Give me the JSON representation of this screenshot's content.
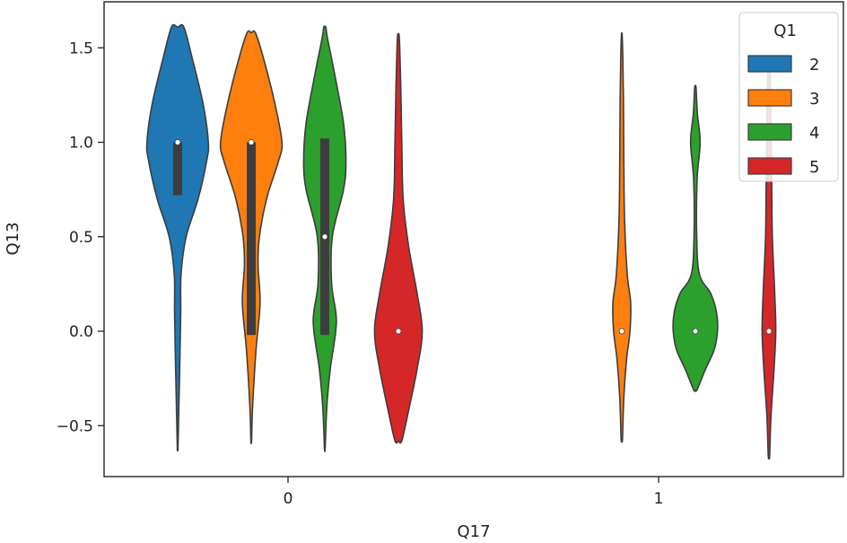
{
  "chart_data": {
    "type": "violin",
    "xlabel": "Q17",
    "ylabel": "Q13",
    "categories": [
      "0",
      "1"
    ],
    "ylim": [
      -0.72,
      1.75
    ],
    "yticks": [
      -0.5,
      0.0,
      0.5,
      1.0,
      1.5
    ],
    "ytick_labels": [
      "−0.5",
      "0.0",
      "0.5",
      "1.0",
      "1.5"
    ],
    "grid": false,
    "legend": {
      "title": "Q1",
      "position": "top-right"
    },
    "series": [
      {
        "name": "2",
        "color": "#1f77b4",
        "violins": [
          {
            "category": "0",
            "median": 1.0,
            "q1": 0.72,
            "q3": 1.0,
            "min": -0.62,
            "max": 1.61,
            "profile": [
              [
                -0.62,
                0.01
              ],
              [
                -0.45,
                0.03
              ],
              [
                -0.2,
                0.06
              ],
              [
                0.1,
                0.09
              ],
              [
                0.3,
                0.1
              ],
              [
                0.5,
                0.25
              ],
              [
                0.7,
                0.6
              ],
              [
                0.9,
                0.85
              ],
              [
                1.0,
                0.9
              ],
              [
                1.2,
                0.75
              ],
              [
                1.45,
                0.42
              ],
              [
                1.61,
                0.18
              ]
            ]
          }
        ]
      },
      {
        "name": "3",
        "color": "#ff7f0e",
        "violins": [
          {
            "category": "0",
            "median": 1.0,
            "q1": -0.02,
            "q3": 1.0,
            "min": -0.58,
            "max": 1.58,
            "profile": [
              [
                -0.58,
                0.01
              ],
              [
                -0.4,
                0.04
              ],
              [
                -0.1,
                0.14
              ],
              [
                0.15,
                0.26
              ],
              [
                0.35,
                0.2
              ],
              [
                0.5,
                0.24
              ],
              [
                0.7,
                0.45
              ],
              [
                0.9,
                0.8
              ],
              [
                1.0,
                0.9
              ],
              [
                1.2,
                0.7
              ],
              [
                1.45,
                0.35
              ],
              [
                1.58,
                0.12
              ]
            ]
          },
          {
            "category": "1",
            "median": 0.0,
            "q1": 0.0,
            "q3": 0.0,
            "min": -0.57,
            "max": 1.57,
            "profile": [
              [
                -0.57,
                0.02
              ],
              [
                -0.35,
                0.06
              ],
              [
                -0.15,
                0.14
              ],
              [
                0.0,
                0.24
              ],
              [
                0.15,
                0.26
              ],
              [
                0.3,
                0.16
              ],
              [
                0.6,
                0.08
              ],
              [
                0.9,
                0.06
              ],
              [
                1.2,
                0.05
              ],
              [
                1.45,
                0.03
              ],
              [
                1.57,
                0.01
              ]
            ]
          }
        ]
      },
      {
        "name": "4",
        "color": "#2ca02c",
        "violins": [
          {
            "category": "0",
            "median": 0.5,
            "q1": -0.02,
            "q3": 1.02,
            "min": -0.62,
            "max": 1.61,
            "profile": [
              [
                -0.62,
                0.01
              ],
              [
                -0.4,
                0.06
              ],
              [
                -0.2,
                0.16
              ],
              [
                0.05,
                0.34
              ],
              [
                0.25,
                0.2
              ],
              [
                0.5,
                0.22
              ],
              [
                0.75,
                0.55
              ],
              [
                0.9,
                0.62
              ],
              [
                1.1,
                0.55
              ],
              [
                1.35,
                0.3
              ],
              [
                1.55,
                0.08
              ],
              [
                1.61,
                0.03
              ]
            ]
          },
          {
            "category": "1",
            "median": 0.0,
            "q1": 0.0,
            "q3": 0.0,
            "min": -0.31,
            "max": 1.29,
            "profile": [
              [
                -0.31,
                0.05
              ],
              [
                -0.2,
                0.3
              ],
              [
                -0.1,
                0.55
              ],
              [
                0.0,
                0.65
              ],
              [
                0.1,
                0.62
              ],
              [
                0.2,
                0.45
              ],
              [
                0.3,
                0.12
              ],
              [
                0.5,
                0.04
              ],
              [
                0.8,
                0.05
              ],
              [
                1.0,
                0.14
              ],
              [
                1.15,
                0.06
              ],
              [
                1.29,
                0.02
              ]
            ]
          }
        ]
      },
      {
        "name": "5",
        "color": "#d62728",
        "violins": [
          {
            "category": "0",
            "median": 0.0,
            "q1": 0.0,
            "q3": 0.0,
            "min": -0.58,
            "max": 1.57,
            "profile": [
              [
                -0.58,
                0.1
              ],
              [
                -0.42,
                0.3
              ],
              [
                -0.2,
                0.55
              ],
              [
                0.0,
                0.7
              ],
              [
                0.2,
                0.55
              ],
              [
                0.45,
                0.3
              ],
              [
                0.7,
                0.14
              ],
              [
                1.0,
                0.1
              ],
              [
                1.3,
                0.07
              ],
              [
                1.5,
                0.04
              ],
              [
                1.57,
                0.02
              ]
            ]
          },
          {
            "category": "1",
            "median": 0.0,
            "q1": 0.0,
            "q3": 0.0,
            "min": -0.66,
            "max": 1.45,
            "profile": [
              [
                -0.66,
                0.02
              ],
              [
                -0.45,
                0.06
              ],
              [
                -0.2,
                0.15
              ],
              [
                0.0,
                0.2
              ],
              [
                0.2,
                0.17
              ],
              [
                0.5,
                0.1
              ],
              [
                0.8,
                0.08
              ],
              [
                1.1,
                0.06
              ],
              [
                1.35,
                0.04
              ],
              [
                1.45,
                0.02
              ]
            ]
          }
        ]
      }
    ]
  }
}
